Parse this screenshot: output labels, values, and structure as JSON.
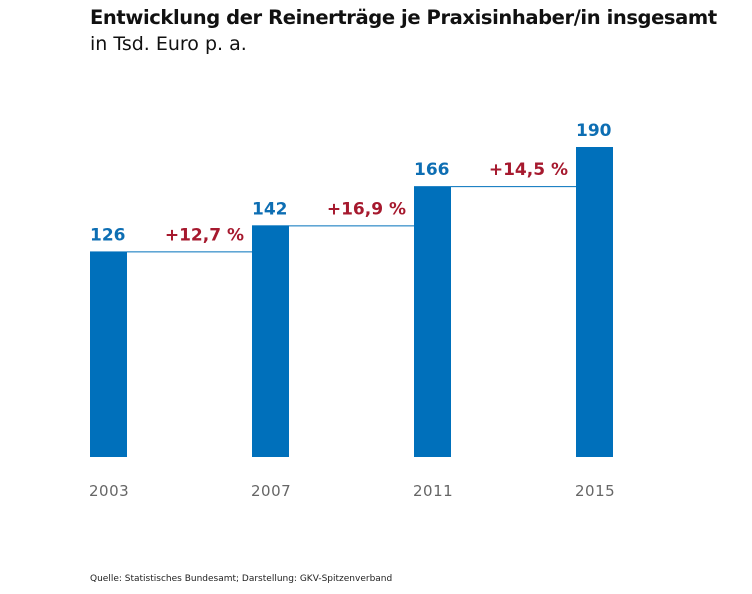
{
  "colors": {
    "bar": "#0070bb",
    "value_label": "#0d6eb3",
    "change_label": "#a6192e",
    "axis_label": "#666666",
    "text": "#111111"
  },
  "chart_data": {
    "type": "bar",
    "title": "Entwicklung der Reinerträge je Praxisinhaber/in insgesamt",
    "subtitle": "in Tsd. Euro p. a.",
    "xlabel": "",
    "ylabel": "",
    "categories": [
      "2003",
      "2007",
      "2011",
      "2015"
    ],
    "values": [
      126,
      142,
      166,
      190
    ],
    "value_labels": [
      "126",
      "142",
      "166",
      "190"
    ],
    "changes": [
      "+12,7 %",
      "+16,9 %",
      "+14,5 %"
    ],
    "ylim": [
      0,
      190
    ],
    "grid": false,
    "legend": "none"
  },
  "source": "Quelle: Statistisches Bundesamt; Darstellung: GKV-Spitzenverband"
}
